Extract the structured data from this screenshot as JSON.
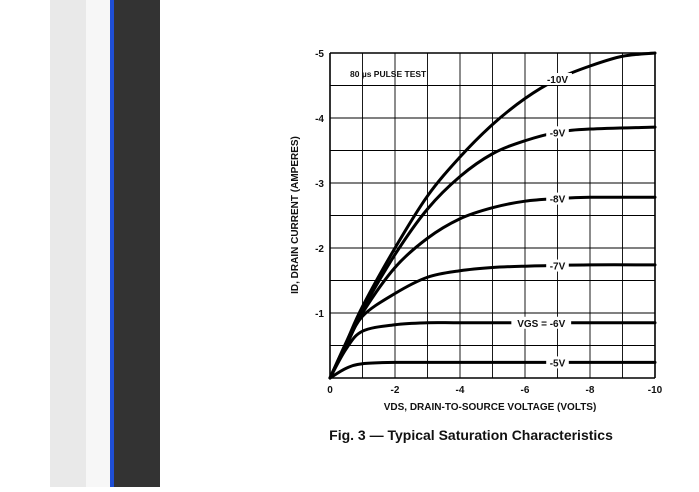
{
  "chart_data": {
    "type": "line",
    "title": "Fig. 3 — Typical Saturation Characteristics",
    "xlabel": "VDS, DRAIN-TO-SOURCE VOLTAGE (VOLTS)",
    "ylabel": "ID, DRAIN CURRENT (AMPERES)",
    "annotation": "80 µs PULSE TEST",
    "xlim": [
      0,
      -10
    ],
    "ylim": [
      0,
      -5
    ],
    "grid": true,
    "x_ticks": [
      "0",
      "-2",
      "-4",
      "-6",
      "-8",
      "-10"
    ],
    "y_ticks": [
      "-1",
      "-2",
      "-3",
      "-4",
      "-5"
    ],
    "series": [
      {
        "name": "-5V",
        "x": [
          0,
          -0.5,
          -1,
          -2,
          -4,
          -6,
          -8,
          -10
        ],
        "y": [
          0,
          -0.15,
          -0.22,
          -0.24,
          -0.24,
          -0.24,
          -0.24,
          -0.24
        ]
      },
      {
        "name": "VGS = -6V",
        "x": [
          0,
          -0.5,
          -1,
          -2,
          -3,
          -4,
          -6,
          -8,
          -10
        ],
        "y": [
          0,
          -0.45,
          -0.72,
          -0.82,
          -0.85,
          -0.85,
          -0.85,
          -0.85,
          -0.85
        ]
      },
      {
        "name": "-7V",
        "x": [
          0,
          -0.5,
          -1,
          -2,
          -3,
          -4,
          -5,
          -6,
          -8,
          -10
        ],
        "y": [
          0,
          -0.5,
          -0.95,
          -1.3,
          -1.55,
          -1.65,
          -1.7,
          -1.72,
          -1.74,
          -1.74
        ]
      },
      {
        "name": "-8V",
        "x": [
          0,
          -0.5,
          -1,
          -2,
          -3,
          -4,
          -5,
          -6,
          -7,
          -8,
          -10
        ],
        "y": [
          0,
          -0.5,
          -1.0,
          -1.7,
          -2.15,
          -2.45,
          -2.62,
          -2.72,
          -2.76,
          -2.78,
          -2.78
        ]
      },
      {
        "name": "-9V",
        "x": [
          0,
          -0.5,
          -1,
          -2,
          -3,
          -4,
          -5,
          -6,
          -7,
          -8,
          -10
        ],
        "y": [
          0,
          -0.55,
          -1.05,
          -1.9,
          -2.6,
          -3.1,
          -3.45,
          -3.65,
          -3.78,
          -3.83,
          -3.86
        ]
      },
      {
        "name": "-10V",
        "x": [
          0,
          -0.5,
          -1,
          -2,
          -3,
          -4,
          -5,
          -6,
          -7,
          -8,
          -9,
          -10
        ],
        "y": [
          0,
          -0.55,
          -1.1,
          -2.0,
          -2.8,
          -3.4,
          -3.9,
          -4.3,
          -4.6,
          -4.8,
          -4.95,
          -5.0
        ]
      }
    ]
  }
}
